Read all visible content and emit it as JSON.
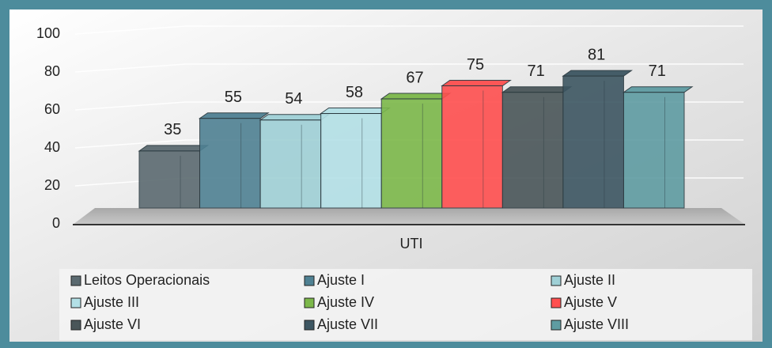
{
  "chart_data": {
    "type": "bar",
    "categories": [
      "UTI"
    ],
    "series": [
      {
        "name": "Leitos Operacionais",
        "color": "#5b6a70",
        "values": [
          35
        ]
      },
      {
        "name": "Ajuste I",
        "color": "#4f8193",
        "values": [
          55
        ]
      },
      {
        "name": "Ajuste II",
        "color": "#9fd0d6",
        "values": [
          54
        ]
      },
      {
        "name": "Ajuste III",
        "color": "#b3e0e6",
        "values": [
          58
        ]
      },
      {
        "name": "Ajuste IV",
        "color": "#7cb84a",
        "values": [
          67
        ]
      },
      {
        "name": "Ajuste V",
        "color": "#ff4f4f",
        "values": [
          75
        ]
      },
      {
        "name": "Ajuste VI",
        "color": "#4a5659",
        "values": [
          71
        ]
      },
      {
        "name": "Ajuste VII",
        "color": "#3d5662",
        "values": [
          81
        ]
      },
      {
        "name": "Ajuste VIII",
        "color": "#5f9ca2",
        "values": [
          71
        ]
      }
    ],
    "ylim": [
      0,
      100
    ],
    "yticks": [
      0,
      20,
      40,
      60,
      80,
      100
    ],
    "grid": true,
    "legend": "bottom"
  }
}
